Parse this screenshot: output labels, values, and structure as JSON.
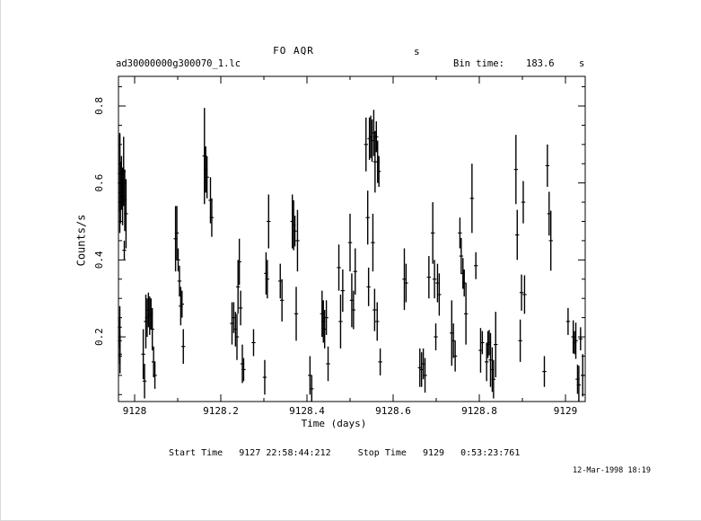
{
  "window": {
    "background": "#ffffff",
    "foreground": "#000000",
    "edge_color": "#d9d9d9"
  },
  "title": {
    "text": "FO AQR",
    "suffix": "s"
  },
  "header": {
    "file_label": "ad30000000g300070_1.lc",
    "bin_time_label": "Bin time:",
    "bin_time_value": "183.6",
    "bin_time_unit": "s"
  },
  "footer": {
    "start_stop": "Start Time   9127 22:58:44:212     Stop Time   9129   0:53:23:761",
    "timestamp": "12-Mar-1998 18:19"
  },
  "chart_data": {
    "type": "scatter",
    "marker": "vertical-error-bar-with-bin-cap",
    "title": "FO AQR",
    "xlabel": "Time (days)",
    "ylabel": "Counts/s",
    "bin_time_s": 183.6,
    "xlim": [
      9127.9625,
      9129.0458
    ],
    "ylim": [
      0.032,
      0.877
    ],
    "x_ticks": [
      9128,
      9128.2,
      9128.4,
      9128.6,
      9128.8,
      9129
    ],
    "x_tick_labels": [
      "9128",
      "9128.2",
      "9128.4",
      "9128.6",
      "9128.8",
      "9129"
    ],
    "x_minor_step": 0.1,
    "y_ticks": [
      0.2,
      0.4,
      0.6,
      0.8
    ],
    "y_tick_labels": [
      "0.2",
      "0.4",
      "0.6",
      "0.8"
    ],
    "y_minor_step": 0.05,
    "grid": false,
    "legend": null,
    "points": [
      [
        9127.961,
        0.225,
        0.055
      ],
      [
        9127.9635,
        0.19,
        0.06
      ],
      [
        9127.966,
        0.155,
        0.05
      ],
      [
        9127.962,
        0.6,
        0.13
      ],
      [
        9127.9645,
        0.625,
        0.1
      ],
      [
        9127.967,
        0.575,
        0.08
      ],
      [
        9127.9695,
        0.6,
        0.07
      ],
      [
        9127.972,
        0.565,
        0.075
      ],
      [
        9127.9745,
        0.63,
        0.09
      ],
      [
        9127.977,
        0.555,
        0.08
      ],
      [
        9127.98,
        0.52,
        0.09
      ],
      [
        9127.976,
        0.425,
        0.025
      ],
      [
        9128.02,
        0.155,
        0.065
      ],
      [
        9128.023,
        0.085,
        0.045
      ],
      [
        9128.026,
        0.24,
        0.07
      ],
      [
        9128.029,
        0.25,
        0.05
      ],
      [
        9128.032,
        0.27,
        0.045
      ],
      [
        9128.035,
        0.255,
        0.05
      ],
      [
        9128.038,
        0.26,
        0.04
      ],
      [
        9128.041,
        0.22,
        0.055
      ],
      [
        9128.044,
        0.135,
        0.04
      ],
      [
        9128.047,
        0.1,
        0.035
      ],
      [
        9128.095,
        0.455,
        0.085
      ],
      [
        9128.098,
        0.47,
        0.07
      ],
      [
        9128.101,
        0.4,
        0.03
      ],
      [
        9128.104,
        0.345,
        0.04
      ],
      [
        9128.107,
        0.28,
        0.05
      ],
      [
        9128.11,
        0.285,
        0.035
      ],
      [
        9128.113,
        0.175,
        0.045
      ],
      [
        9128.162,
        0.67,
        0.125
      ],
      [
        9128.165,
        0.635,
        0.06
      ],
      [
        9128.168,
        0.615,
        0.055
      ],
      [
        9128.176,
        0.555,
        0.06
      ],
      [
        9128.179,
        0.51,
        0.05
      ],
      [
        9128.226,
        0.235,
        0.055
      ],
      [
        9128.23,
        0.25,
        0.04
      ],
      [
        9128.234,
        0.22,
        0.045
      ],
      [
        9128.2375,
        0.2,
        0.06
      ],
      [
        9128.24,
        0.33,
        0.07
      ],
      [
        9128.243,
        0.395,
        0.06
      ],
      [
        9128.246,
        0.275,
        0.045
      ],
      [
        9128.25,
        0.13,
        0.05
      ],
      [
        9128.253,
        0.115,
        0.03
      ],
      [
        9128.276,
        0.185,
        0.035
      ],
      [
        9128.302,
        0.095,
        0.045
      ],
      [
        9128.305,
        0.365,
        0.055
      ],
      [
        9128.308,
        0.35,
        0.05
      ],
      [
        9128.311,
        0.5,
        0.07
      ],
      [
        9128.338,
        0.345,
        0.045
      ],
      [
        9128.342,
        0.295,
        0.055
      ],
      [
        9128.366,
        0.5,
        0.07
      ],
      [
        9128.369,
        0.49,
        0.065
      ],
      [
        9128.372,
        0.475,
        0.04
      ],
      [
        9128.375,
        0.26,
        0.07
      ],
      [
        9128.378,
        0.45,
        0.08
      ],
      [
        9128.407,
        0.1,
        0.05
      ],
      [
        9128.411,
        0.065,
        0.035
      ],
      [
        9128.435,
        0.26,
        0.06
      ],
      [
        9128.438,
        0.24,
        0.055
      ],
      [
        9128.441,
        0.22,
        0.05
      ],
      [
        9128.445,
        0.25,
        0.045
      ],
      [
        9128.449,
        0.13,
        0.045
      ],
      [
        9128.474,
        0.38,
        0.06
      ],
      [
        9128.478,
        0.24,
        0.07
      ],
      [
        9128.483,
        0.32,
        0.055
      ],
      [
        9128.5,
        0.445,
        0.075
      ],
      [
        9128.504,
        0.295,
        0.07
      ],
      [
        9128.508,
        0.27,
        0.05
      ],
      [
        9128.512,
        0.37,
        0.06
      ],
      [
        9128.537,
        0.7,
        0.07
      ],
      [
        9128.541,
        0.51,
        0.07
      ],
      [
        9128.543,
        0.33,
        0.05
      ],
      [
        9128.545,
        0.715,
        0.055
      ],
      [
        9128.548,
        0.72,
        0.055
      ],
      [
        9128.551,
        0.71,
        0.055
      ],
      [
        9128.553,
        0.445,
        0.075
      ],
      [
        9128.555,
        0.73,
        0.06
      ],
      [
        9128.557,
        0.27,
        0.055
      ],
      [
        9128.558,
        0.655,
        0.08
      ],
      [
        9128.561,
        0.72,
        0.04
      ],
      [
        9128.563,
        0.24,
        0.05
      ],
      [
        9128.564,
        0.655,
        0.055
      ],
      [
        9128.567,
        0.63,
        0.04
      ],
      [
        9128.57,
        0.135,
        0.035
      ],
      [
        9128.626,
        0.35,
        0.08
      ],
      [
        9128.63,
        0.34,
        0.05
      ],
      [
        9128.662,
        0.12,
        0.05
      ],
      [
        9128.666,
        0.115,
        0.045
      ],
      [
        9128.67,
        0.13,
        0.04
      ],
      [
        9128.674,
        0.1,
        0.045
      ],
      [
        9128.683,
        0.355,
        0.055
      ],
      [
        9128.692,
        0.47,
        0.08
      ],
      [
        9128.696,
        0.35,
        0.05
      ],
      [
        9128.699,
        0.2,
        0.035
      ],
      [
        9128.703,
        0.34,
        0.05
      ],
      [
        9128.707,
        0.31,
        0.055
      ],
      [
        9128.736,
        0.21,
        0.085
      ],
      [
        9128.74,
        0.19,
        0.045
      ],
      [
        9128.744,
        0.15,
        0.04
      ],
      [
        9128.755,
        0.47,
        0.04
      ],
      [
        9128.758,
        0.41,
        0.047
      ],
      [
        9128.762,
        0.365,
        0.04
      ],
      [
        9128.765,
        0.34,
        0.035
      ],
      [
        9128.769,
        0.26,
        0.08
      ],
      [
        9128.783,
        0.56,
        0.09
      ],
      [
        9128.792,
        0.385,
        0.035
      ],
      [
        9128.803,
        0.165,
        0.058
      ],
      [
        9128.807,
        0.185,
        0.03
      ],
      [
        9128.817,
        0.135,
        0.05
      ],
      [
        9128.82,
        0.18,
        0.035
      ],
      [
        9128.823,
        0.185,
        0.033
      ],
      [
        9128.826,
        0.14,
        0.07
      ],
      [
        9128.83,
        0.115,
        0.058
      ],
      [
        9128.833,
        0.09,
        0.05
      ],
      [
        9128.838,
        0.18,
        0.085
      ],
      [
        9128.885,
        0.635,
        0.09
      ],
      [
        9128.888,
        0.465,
        0.065
      ],
      [
        9128.895,
        0.19,
        0.055
      ],
      [
        9128.898,
        0.315,
        0.047
      ],
      [
        9128.902,
        0.55,
        0.055
      ],
      [
        9128.905,
        0.31,
        0.05
      ],
      [
        9128.951,
        0.11,
        0.04
      ],
      [
        9128.958,
        0.645,
        0.055
      ],
      [
        9128.962,
        0.52,
        0.057
      ],
      [
        9128.966,
        0.45,
        0.078
      ],
      [
        9129.006,
        0.24,
        0.035
      ],
      [
        9129.018,
        0.2,
        0.043
      ],
      [
        9129.021,
        0.185,
        0.03
      ],
      [
        9129.024,
        0.19,
        0.047
      ],
      [
        9129.028,
        0.09,
        0.038
      ],
      [
        9129.031,
        0.075,
        0.05
      ],
      [
        9129.035,
        0.195,
        0.03
      ],
      [
        9129.04,
        0.1,
        0.055
      ]
    ]
  }
}
